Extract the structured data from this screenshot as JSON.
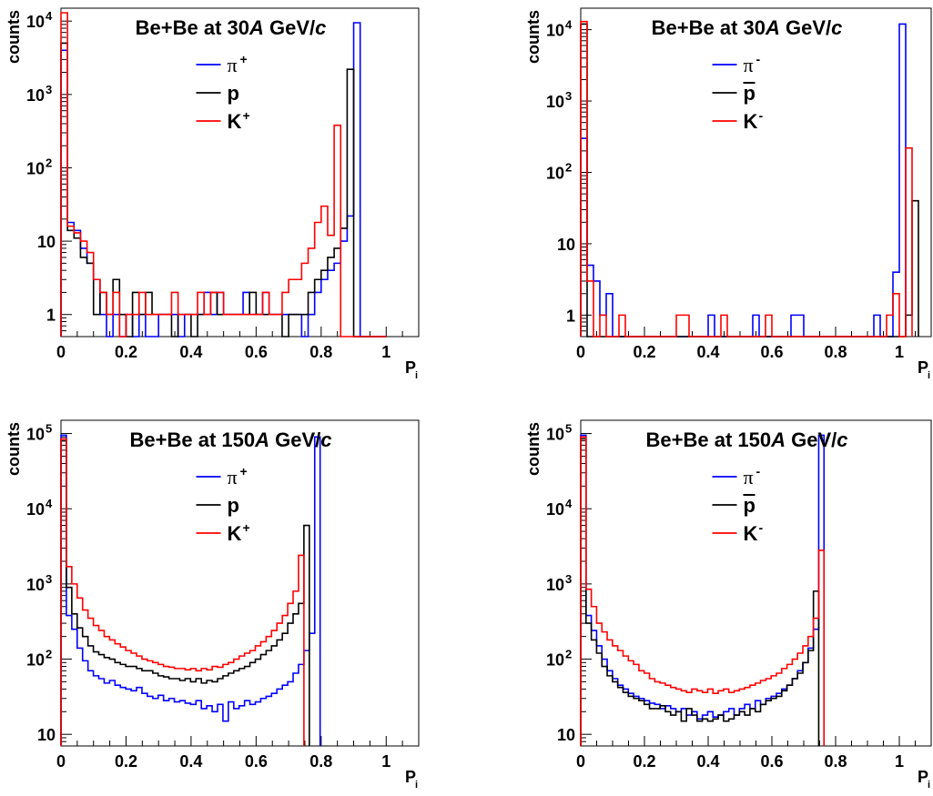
{
  "chart_data": [
    {
      "type": "histogram",
      "panel": "top-left",
      "title": "Be+Be at 30 A GeV/c",
      "title_parts": {
        "prefix": "Be+Be at 30",
        "italic": "A",
        "mid": " GeV/",
        "italic2": "c"
      },
      "xlabel": "P",
      "xlabel_sub": "i",
      "ylabel": "counts",
      "xlim": [
        0,
        1.1
      ],
      "ylim": [
        0.5,
        15000
      ],
      "yscale": "log",
      "x_ticks": [
        "0",
        "0.2",
        "0.4",
        "0.6",
        "0.8",
        "1"
      ],
      "y_ticks": [
        {
          "value": 1,
          "base": "1",
          "exp": ""
        },
        {
          "value": 10,
          "base": "10",
          "exp": ""
        },
        {
          "value": 100,
          "base": "10",
          "exp": "2"
        },
        {
          "value": 1000,
          "base": "10",
          "exp": "3"
        },
        {
          "value": 10000,
          "base": "10",
          "exp": "4"
        }
      ],
      "bin_width": 0.02,
      "legend_position": "top-center",
      "series": [
        {
          "name": "π",
          "sup": "+",
          "color": "#0000ff",
          "values": [
            4000,
            18,
            14,
            8,
            5,
            3,
            1,
            0,
            1,
            0,
            1,
            0,
            1,
            0,
            0,
            1,
            1,
            1,
            0,
            1,
            1,
            1,
            2,
            1,
            2,
            1,
            1,
            1,
            2,
            1,
            1,
            2,
            1,
            1,
            1,
            1,
            1,
            0,
            1,
            2,
            3,
            4,
            5,
            10,
            22,
            9500,
            0,
            0,
            0,
            0
          ]
        },
        {
          "name": "p",
          "sup": "",
          "color": "#000000",
          "values": [
            5000,
            14,
            11,
            6,
            5,
            1,
            2,
            1,
            3,
            1,
            0,
            2,
            1,
            2,
            1,
            1,
            1,
            0,
            1,
            1,
            0,
            1,
            1,
            2,
            1,
            1,
            1,
            1,
            1,
            2,
            1,
            1,
            1,
            1,
            0,
            1,
            1,
            1,
            2,
            3,
            4,
            6,
            8,
            15,
            2200,
            0,
            0,
            0,
            0,
            0
          ]
        },
        {
          "name": "K",
          "sup": "+",
          "color": "#ff0000",
          "values": [
            13000,
            16,
            13,
            10,
            7,
            3,
            2,
            1,
            2,
            0,
            1,
            1,
            2,
            1,
            1,
            1,
            1,
            2,
            1,
            1,
            1,
            2,
            1,
            2,
            2,
            1,
            1,
            1,
            1,
            1,
            1,
            2,
            1,
            1,
            2,
            3,
            3,
            5,
            8,
            18,
            30,
            12,
            380,
            0,
            0,
            0,
            0,
            0,
            0,
            0
          ]
        }
      ]
    },
    {
      "type": "histogram",
      "panel": "top-right",
      "title": "Be+Be at 30 A GeV/c",
      "title_parts": {
        "prefix": "Be+Be at 30",
        "italic": "A",
        "mid": " GeV/",
        "italic2": "c"
      },
      "xlabel": "P",
      "xlabel_sub": "i",
      "ylabel": "counts",
      "xlim": [
        0,
        1.1
      ],
      "ylim": [
        0.5,
        20000
      ],
      "yscale": "log",
      "x_ticks": [
        "0",
        "0.2",
        "0.4",
        "0.6",
        "0.8",
        "1"
      ],
      "y_ticks": [
        {
          "value": 1,
          "base": "1",
          "exp": ""
        },
        {
          "value": 10,
          "base": "10",
          "exp": ""
        },
        {
          "value": 100,
          "base": "10",
          "exp": "2"
        },
        {
          "value": 1000,
          "base": "10",
          "exp": "3"
        },
        {
          "value": 10000,
          "base": "10",
          "exp": "4"
        }
      ],
      "bin_width": 0.02,
      "legend_position": "top-center",
      "series": [
        {
          "name": "π",
          "sup": "-",
          "color": "#0000ff",
          "values": [
            300,
            5,
            3,
            1,
            2,
            0,
            0,
            0,
            0,
            0,
            0,
            0,
            0,
            0,
            0,
            0,
            0,
            0,
            0,
            0,
            1,
            0,
            0,
            0,
            0,
            0,
            0,
            1,
            0,
            0,
            0,
            0,
            0,
            1,
            1,
            0,
            0,
            0,
            0,
            0,
            0,
            0,
            0,
            0,
            0,
            0,
            1,
            0,
            0,
            4,
            12000
          ]
        },
        {
          "name": "p",
          "sup": "",
          "bar": true,
          "color": "#000000",
          "values": [
            12000,
            0,
            0,
            0,
            0,
            0,
            0,
            0,
            0,
            0,
            0,
            0,
            0,
            0,
            0,
            0,
            0,
            0,
            0,
            0,
            0,
            0,
            0,
            0,
            0,
            0,
            0,
            0,
            0,
            0,
            0,
            0,
            0,
            0,
            0,
            0,
            0,
            0,
            0,
            0,
            0,
            0,
            0,
            0,
            0,
            0,
            0,
            0,
            0,
            0,
            0,
            1,
            40
          ]
        },
        {
          "name": "K",
          "sup": "-",
          "color": "#ff0000",
          "values": [
            13000,
            3,
            0,
            1,
            0,
            0,
            1,
            0,
            0,
            0,
            0,
            0,
            0,
            0,
            0,
            1,
            1,
            0,
            0,
            0,
            0,
            0,
            1,
            0,
            0,
            0,
            0,
            0,
            0,
            1,
            0,
            0,
            0,
            0,
            0,
            0,
            0,
            0,
            0,
            0,
            0,
            0,
            0,
            0,
            0,
            0,
            0,
            0,
            1,
            2,
            0,
            220
          ]
        }
      ]
    },
    {
      "type": "histogram",
      "panel": "bottom-left",
      "title": "Be+Be at 150A GeV/c",
      "title_parts": {
        "prefix": "Be+Be at 150",
        "italic": "A",
        "mid": " GeV/",
        "italic2": "c"
      },
      "xlabel": "P",
      "xlabel_sub": "i",
      "ylabel": "counts",
      "xlim": [
        0,
        1.1
      ],
      "ylim": [
        7,
        150000
      ],
      "yscale": "log",
      "x_ticks": [
        "0",
        "0.2",
        "0.4",
        "0.6",
        "0.8",
        "1"
      ],
      "y_ticks": [
        {
          "value": 10,
          "base": "10",
          "exp": ""
        },
        {
          "value": 100,
          "base": "10",
          "exp": "2"
        },
        {
          "value": 1000,
          "base": "10",
          "exp": "3"
        },
        {
          "value": 10000,
          "base": "10",
          "exp": "4"
        },
        {
          "value": 100000,
          "base": "10",
          "exp": "5"
        }
      ],
      "bin_width": 0.0166,
      "legend_position": "top-center",
      "series": [
        {
          "name": "π",
          "sup": "+",
          "color": "#0000ff",
          "values": [
            95000,
            380,
            250,
            140,
            95,
            70,
            60,
            55,
            48,
            52,
            45,
            42,
            40,
            38,
            42,
            35,
            32,
            30,
            33,
            28,
            30,
            27,
            28,
            26,
            25,
            28,
            22,
            24,
            20,
            25,
            15,
            27,
            22,
            24,
            28,
            25,
            27,
            30,
            32,
            35,
            40,
            45,
            50,
            65,
            85,
            130,
            220,
            90000
          ]
        },
        {
          "name": "p",
          "sup": "",
          "color": "#000000",
          "values": [
            80000,
            900,
            400,
            260,
            200,
            150,
            125,
            115,
            105,
            100,
            90,
            85,
            80,
            80,
            75,
            70,
            70,
            65,
            60,
            58,
            55,
            55,
            52,
            55,
            50,
            55,
            48,
            52,
            50,
            55,
            60,
            65,
            70,
            75,
            80,
            90,
            100,
            115,
            130,
            150,
            180,
            220,
            300,
            400,
            550,
            6000
          ]
        },
        {
          "name": "K",
          "sup": "+",
          "color": "#ff0000",
          "values": [
            85000,
            1700,
            1000,
            650,
            450,
            350,
            280,
            240,
            200,
            180,
            160,
            145,
            130,
            120,
            110,
            100,
            95,
            90,
            85,
            80,
            78,
            75,
            75,
            72,
            75,
            70,
            75,
            72,
            80,
            78,
            85,
            90,
            100,
            110,
            120,
            130,
            150,
            170,
            200,
            240,
            300,
            380,
            550,
            800,
            2400
          ]
        }
      ]
    },
    {
      "type": "histogram",
      "panel": "bottom-right",
      "title": "Be+Be at 150A GeV/c",
      "title_parts": {
        "prefix": "Be+Be at 150",
        "italic": "A",
        "mid": " GeV/",
        "italic2": "c"
      },
      "xlabel": "P",
      "xlabel_sub": "i",
      "ylabel": "counts",
      "xlim": [
        0,
        1.1
      ],
      "ylim": [
        7,
        150000
      ],
      "yscale": "log",
      "x_ticks": [
        "0",
        "0.2",
        "0.4",
        "0.6",
        "0.8",
        "1"
      ],
      "y_ticks": [
        {
          "value": 10,
          "base": "10",
          "exp": ""
        },
        {
          "value": 100,
          "base": "10",
          "exp": "2"
        },
        {
          "value": 1000,
          "base": "10",
          "exp": "3"
        },
        {
          "value": 10000,
          "base": "10",
          "exp": "4"
        },
        {
          "value": 100000,
          "base": "10",
          "exp": "5"
        }
      ],
      "bin_width": 0.0166,
      "legend_position": "top-center",
      "series": [
        {
          "name": "π",
          "sup": "-",
          "color": "#0000ff",
          "values": [
            95000,
            380,
            240,
            150,
            100,
            70,
            55,
            45,
            40,
            35,
            32,
            30,
            28,
            26,
            25,
            22,
            24,
            22,
            20,
            22,
            18,
            20,
            16,
            18,
            20,
            17,
            18,
            20,
            22,
            18,
            22,
            25,
            22,
            28,
            25,
            30,
            32,
            35,
            40,
            45,
            55,
            70,
            90,
            140,
            250,
            95000
          ]
        },
        {
          "name": "p",
          "sup": "",
          "bar": true,
          "color": "#000000",
          "values": [
            85000,
            300,
            180,
            120,
            80,
            60,
            50,
            42,
            36,
            32,
            30,
            28,
            25,
            22,
            22,
            24,
            20,
            18,
            20,
            15,
            22,
            18,
            15,
            16,
            15,
            16,
            18,
            15,
            16,
            18,
            20,
            18,
            22,
            20,
            25,
            28,
            30,
            32,
            38,
            45,
            55,
            65,
            90,
            130,
            800
          ]
        },
        {
          "name": "K",
          "sup": "-",
          "color": "#ff0000",
          "values": [
            90000,
            850,
            500,
            300,
            230,
            180,
            150,
            130,
            110,
            95,
            85,
            70,
            65,
            55,
            50,
            48,
            45,
            42,
            40,
            38,
            36,
            40,
            38,
            36,
            40,
            35,
            38,
            40,
            36,
            38,
            40,
            42,
            45,
            48,
            52,
            55,
            60,
            65,
            75,
            85,
            100,
            120,
            150,
            200,
            350,
            2800
          ]
        }
      ]
    }
  ]
}
